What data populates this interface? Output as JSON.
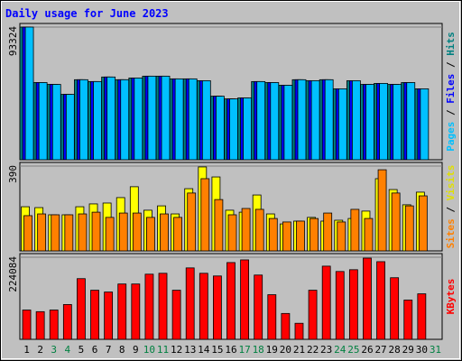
{
  "chart_data": {
    "type": "bar",
    "title": "Daily usage for June 2023",
    "categories": [
      "1",
      "2",
      "3",
      "4",
      "5",
      "6",
      "7",
      "8",
      "9",
      "10",
      "11",
      "12",
      "13",
      "14",
      "15",
      "16",
      "17",
      "18",
      "19",
      "20",
      "21",
      "22",
      "23",
      "24",
      "25",
      "26",
      "27",
      "28",
      "29",
      "30",
      "31"
    ],
    "weekend_days": [
      3,
      4,
      10,
      11,
      17,
      18,
      24,
      25,
      31
    ],
    "weekend_color": "#008040",
    "separator": " / ",
    "panels": [
      {
        "ylim": [
          0,
          93324
        ],
        "yticks": [
          93324
        ],
        "series": [
          {
            "name": "Hits",
            "color": "#008080",
            "values": [
              93324,
              54300,
              53000,
              46000,
              56300,
              55000,
              58200,
              56300,
              57500,
              58800,
              58800,
              56900,
              56900,
              55600,
              44700,
              42800,
              43500,
              55000,
              54300,
              52400,
              56300,
              55600,
              56300,
              49900,
              55600,
              53000,
              53700,
              53000,
              54300,
              49900,
              null
            ]
          },
          {
            "name": "Files",
            "color": "#0000ff",
            "values": [
              93324,
              54300,
              53000,
              46000,
              56300,
              55000,
              58200,
              56300,
              57500,
              58800,
              58800,
              56900,
              56900,
              55600,
              44700,
              42800,
              43500,
              55000,
              54300,
              52400,
              56300,
              55600,
              56300,
              49900,
              55600,
              53000,
              53700,
              53000,
              54300,
              49900,
              null
            ]
          },
          {
            "name": "Pages",
            "color": "#00c0ff",
            "values": [
              93324,
              54300,
              53000,
              46000,
              56300,
              55000,
              58200,
              56300,
              57500,
              58800,
              58800,
              56900,
              56900,
              55600,
              44700,
              42800,
              43500,
              55000,
              54300,
              52400,
              56300,
              55600,
              56300,
              49900,
              55600,
              53000,
              53700,
              53000,
              54300,
              49900,
              null
            ]
          }
        ]
      },
      {
        "ylim": [
          0,
          390
        ],
        "yticks": [
          390
        ],
        "series": [
          {
            "name": "Visits",
            "color": "#ffff00",
            "values": [
              203,
              199,
              166,
              166,
              203,
              216,
              220,
              245,
              295,
              187,
              207,
              170,
              286,
              386,
              340,
              187,
              178,
              257,
              170,
              124,
              137,
              154,
              137,
              141,
              149,
              183,
              332,
              282,
              212,
              270,
              null
            ]
          },
          {
            "name": "Sites",
            "color": "#ff8000",
            "values": [
              162,
              170,
              166,
              166,
              170,
              178,
              154,
              174,
              174,
              154,
              170,
              154,
              266,
              332,
              236,
              166,
              195,
              191,
              149,
              133,
              137,
              149,
              174,
              133,
              191,
              149,
              373,
              266,
              207,
              253,
              null
            ]
          }
        ]
      },
      {
        "ylim": [
          0,
          224084
        ],
        "yticks": [
          224084
        ],
        "series": [
          {
            "name": "KBytes",
            "color": "#ff0000",
            "values": [
              80000,
              75500,
              80000,
              95000,
              165600,
              134000,
              129100,
              151000,
              151000,
              177800,
              180200,
              134000,
              194900,
              180200,
              172900,
              209500,
              216800,
              175400,
              121800,
              70600,
              43800,
              134000,
              199700,
              185100,
              190000,
              221600,
              211900,
              168100,
              107200,
              124200,
              null
            ]
          }
        ]
      }
    ]
  }
}
